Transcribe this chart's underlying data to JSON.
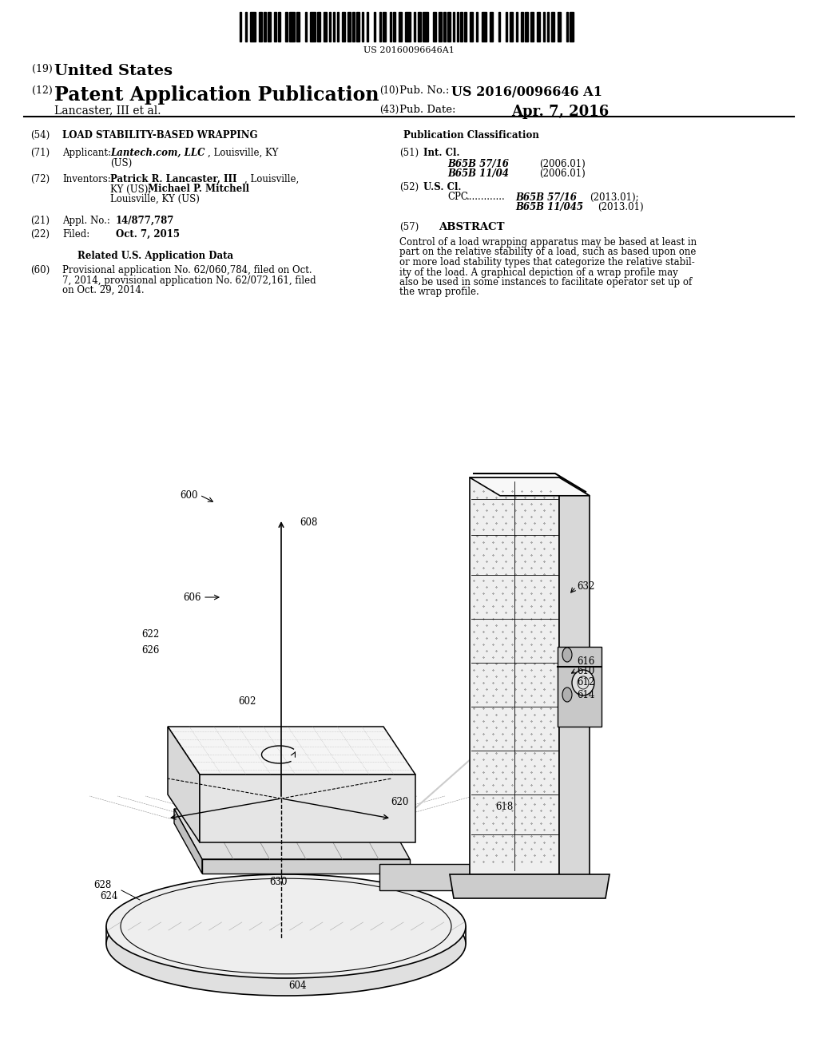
{
  "background_color": "#ffffff",
  "barcode_text": "US 20160096646A1",
  "country_label": "(19) United States",
  "pub_type_label": "(12) Patent Application Publication",
  "pub_no_label": "(10) Pub. No.:",
  "pub_no_value": "US 2016/0096646 A1",
  "author_line": "Lancaster, III et al.",
  "pub_date_label": "(43) Pub. Date:",
  "pub_date_value": "Apr. 7, 2016",
  "section54_label": "(54)",
  "section54_title": "LOAD STABILITY-BASED WRAPPING",
  "section71_label": "(71)",
  "section71_key": "Applicant:",
  "section72_label": "(72)",
  "section72_key": "Inventors:",
  "section21_label": "(21)",
  "section21_key": "Appl. No.:",
  "section21_value": "14/877,787",
  "section22_label": "(22)",
  "section22_key": "Filed:",
  "section22_value": "Oct. 7, 2015",
  "related_title": "Related U.S. Application Data",
  "section60_label": "(60)",
  "section60_value": "Provisional application No. 62/060,784, filed on Oct.\n7, 2014, provisional application No. 62/072,161, filed\non Oct. 29, 2014.",
  "pub_class_title": "Publication Classification",
  "section51_label": "(51)",
  "section51_key": "Int. Cl.",
  "intcl_line1_class": "B65B 57/16",
  "intcl_line1_year": "(2006.01)",
  "intcl_line2_class": "B65B 11/04",
  "intcl_line2_year": "(2006.01)",
  "section52_label": "(52)",
  "section52_key": "U.S. Cl.",
  "cpc_value1": "B65B 57/16",
  "cpc_year1": "(2013.01);",
  "cpc_value2": "B65B 11/045",
  "cpc_year2": "(2013.01)",
  "section57_label": "(57)",
  "abstract_title": "ABSTRACT",
  "abstract_text": "Control of a load wrapping apparatus may be based at least in\npart on the relative stability of a load, such as based upon one\nor more load stability types that categorize the relative stabil-\nity of the load. A graphical depiction of a wrap profile may\nalso be used in some instances to facilitate operator set up of\nthe wrap profile.",
  "diagram_label_600": "600",
  "diagram_label_608": "608",
  "diagram_label_606": "606",
  "diagram_label_622": "622",
  "diagram_label_626": "626",
  "diagram_label_602": "602",
  "diagram_label_604": "604",
  "diagram_label_624": "624",
  "diagram_label_628": "628",
  "diagram_label_630": "630",
  "diagram_label_620": "620",
  "diagram_label_618": "618",
  "diagram_label_616": "616",
  "diagram_label_610": "610",
  "diagram_label_612": "612",
  "diagram_label_614": "614",
  "diagram_label_632": "632"
}
